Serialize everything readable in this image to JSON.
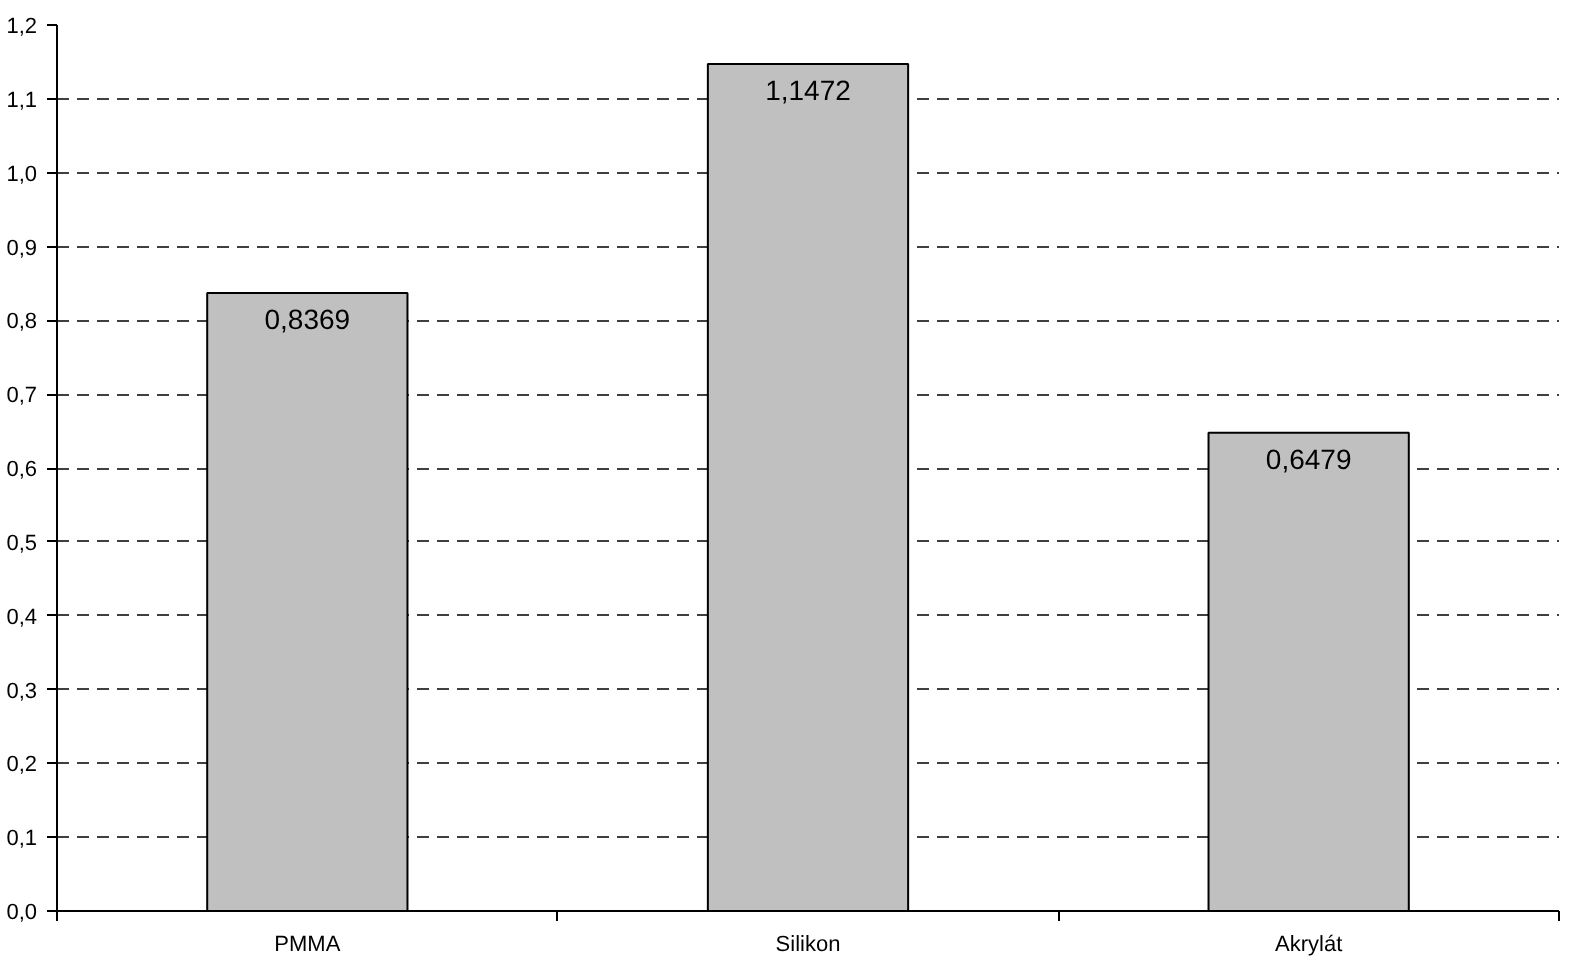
{
  "chart_data": {
    "type": "bar",
    "categories": [
      "PMMA",
      "Silikon",
      "Akrylát"
    ],
    "values": [
      0.8369,
      1.1472,
      0.6479
    ],
    "value_labels": [
      "0,8369",
      "1,1472",
      "0,6479"
    ],
    "color": "#c0c0c0",
    "ylim": [
      0,
      1.2
    ],
    "yticks": [
      {
        "value": 0,
        "label": "0,0"
      },
      {
        "value": 0.1,
        "label": "0,1"
      },
      {
        "value": 0.2,
        "label": "0,2"
      },
      {
        "value": 0.3,
        "label": "0,3"
      },
      {
        "value": 0.4,
        "label": "0,4"
      },
      {
        "value": 0.5,
        "label": "0,5"
      },
      {
        "value": 0.6,
        "label": "0,6"
      },
      {
        "value": 0.7,
        "label": "0,7"
      },
      {
        "value": 0.8,
        "label": "0,8"
      },
      {
        "value": 0.9,
        "label": "0,9"
      },
      {
        "value": 1.0,
        "label": "1,0"
      },
      {
        "value": 1.1,
        "label": "1,1"
      },
      {
        "value": 1.2,
        "label": "1,2"
      }
    ],
    "grid": "y",
    "line_style": "dashed"
  }
}
